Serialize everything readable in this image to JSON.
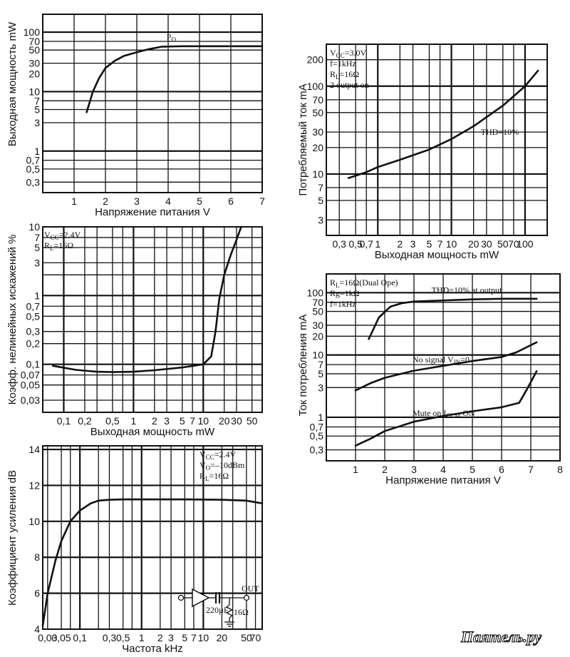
{
  "watermark": "Паяmель.ру",
  "chart_data": [
    {
      "id": "c1",
      "type": "line",
      "xlabel": "Напряжение питания V",
      "ylabel": "Выходная мощность mW",
      "xscale": "linear",
      "yscale": "log",
      "xlim": [
        0,
        7
      ],
      "ylim": [
        0.2,
        200
      ],
      "xgrid": [
        1,
        2,
        3,
        4,
        5,
        6,
        7
      ],
      "ygrid": [
        0.3,
        0.5,
        0.7,
        1,
        3,
        5,
        7,
        10,
        30,
        50,
        70,
        100
      ],
      "ygrid_bold": [
        1,
        10,
        100
      ],
      "xticks": [
        {
          "v": 1,
          "t": "1"
        },
        {
          "v": 2,
          "t": "2"
        },
        {
          "v": 3,
          "t": "3"
        },
        {
          "v": 4,
          "t": "4"
        },
        {
          "v": 5,
          "t": "5"
        },
        {
          "v": 6,
          "t": "6"
        },
        {
          "v": 7,
          "t": "7"
        }
      ],
      "yticks": [
        {
          "v": 0.3,
          "t": "0,3"
        },
        {
          "v": 0.5,
          "t": "0,5"
        },
        {
          "v": 0.7,
          "t": "0,7"
        },
        {
          "v": 1,
          "t": "1"
        },
        {
          "v": 3,
          "t": "3"
        },
        {
          "v": 5,
          "t": "5"
        },
        {
          "v": 7,
          "t": "7"
        },
        {
          "v": 10,
          "t": "10"
        },
        {
          "v": 20,
          "t": "20"
        },
        {
          "v": 30,
          "t": "30"
        },
        {
          "v": 50,
          "t": "50"
        },
        {
          "v": 70,
          "t": "70"
        },
        {
          "v": 100,
          "t": "100"
        }
      ],
      "series": [
        {
          "name": "PO",
          "x": [
            1.4,
            1.6,
            1.8,
            2,
            2.3,
            2.6,
            3,
            3.4,
            3.8,
            4.5,
            5.5,
            7
          ],
          "y": [
            4.5,
            10,
            17,
            25,
            33,
            40,
            46,
            52,
            57,
            58,
            58,
            58
          ],
          "label_at": [
            3.95,
            75
          ]
        }
      ],
      "notes": []
    },
    {
      "id": "c2",
      "type": "line",
      "xlabel": "Выходная мощность mW",
      "ylabel": "Потребляемый ток mA",
      "xscale": "log",
      "yscale": "log",
      "xlim": [
        0.2,
        200
      ],
      "ylim": [
        2,
        300
      ],
      "xgrid": [
        0.3,
        0.5,
        0.7,
        1,
        2,
        3,
        5,
        7,
        10,
        20,
        30,
        50,
        70,
        100
      ],
      "xgrid_bold": [
        1,
        10,
        100
      ],
      "ygrid": [
        3,
        5,
        7,
        10,
        20,
        30,
        50,
        70,
        100,
        200
      ],
      "ygrid_bold": [
        10,
        100
      ],
      "xticks": [
        {
          "v": 0.3,
          "t": "0,3"
        },
        {
          "v": 0.5,
          "t": "0,5"
        },
        {
          "v": 0.7,
          "t": "0,7"
        },
        {
          "v": 1,
          "t": "1"
        },
        {
          "v": 2,
          "t": "2"
        },
        {
          "v": 3,
          "t": "3"
        },
        {
          "v": 5,
          "t": "5"
        },
        {
          "v": 7,
          "t": "7"
        },
        {
          "v": 10,
          "t": "10"
        },
        {
          "v": 20,
          "t": "20"
        },
        {
          "v": 30,
          "t": "30"
        },
        {
          "v": 50,
          "t": "50"
        },
        {
          "v": 70,
          "t": "70"
        },
        {
          "v": 100,
          "t": "100"
        }
      ],
      "yticks": [
        {
          "v": 3,
          "t": "3"
        },
        {
          "v": 5,
          "t": "5"
        },
        {
          "v": 7,
          "t": "7"
        },
        {
          "v": 10,
          "t": "10"
        },
        {
          "v": 20,
          "t": "20"
        },
        {
          "v": 30,
          "t": "30"
        },
        {
          "v": 50,
          "t": "50"
        },
        {
          "v": 70,
          "t": "70"
        },
        {
          "v": 100,
          "t": "100"
        },
        {
          "v": 200,
          "t": "200"
        }
      ],
      "series": [
        {
          "name": "THD=10%",
          "x": [
            0.4,
            0.7,
            1,
            2,
            5,
            10,
            20,
            50,
            100,
            150
          ],
          "y": [
            9,
            10.5,
            12,
            14.5,
            19,
            25,
            35,
            60,
            100,
            150
          ],
          "label_at": [
            25,
            28
          ]
        }
      ],
      "notes": [
        "VCC=3.0V",
        "f=1kHz",
        "RL=16Ω",
        "2 output on"
      ]
    },
    {
      "id": "c3",
      "type": "line",
      "xlabel": "Выходная мощность mW",
      "ylabel": "Коэфф. нелинейных искажений %",
      "xscale": "log",
      "yscale": "log",
      "xlim": [
        0.05,
        70
      ],
      "ylim": [
        0.02,
        10
      ],
      "xgrid": [
        0.1,
        0.2,
        0.3,
        0.5,
        0.7,
        1,
        2,
        3,
        5,
        7,
        10,
        20,
        30,
        50
      ],
      "xgrid_bold": [
        0.1,
        1,
        10
      ],
      "ygrid": [
        0.03,
        0.05,
        0.07,
        0.1,
        0.2,
        0.3,
        0.5,
        0.7,
        1,
        2,
        3,
        5,
        7,
        10
      ],
      "ygrid_bold": [
        0.1,
        1
      ],
      "xticks": [
        {
          "v": 0.1,
          "t": "0,1"
        },
        {
          "v": 0.2,
          "t": "0,2"
        },
        {
          "v": 0.5,
          "t": "0,5"
        },
        {
          "v": 1,
          "t": "1"
        },
        {
          "v": 2,
          "t": "2"
        },
        {
          "v": 3,
          "t": "3"
        },
        {
          "v": 5,
          "t": "5"
        },
        {
          "v": 7,
          "t": "7"
        },
        {
          "v": 10,
          "t": "10"
        },
        {
          "v": 20,
          "t": "20"
        },
        {
          "v": 30,
          "t": "30"
        },
        {
          "v": 50,
          "t": "50"
        }
      ],
      "yticks": [
        {
          "v": 0.03,
          "t": "0,03"
        },
        {
          "v": 0.05,
          "t": "0,05"
        },
        {
          "v": 0.07,
          "t": "0,07"
        },
        {
          "v": 0.1,
          "t": "0,1"
        },
        {
          "v": 0.2,
          "t": "0,2"
        },
        {
          "v": 0.3,
          "t": "0,3"
        },
        {
          "v": 0.5,
          "t": "0,5"
        },
        {
          "v": 0.7,
          "t": "0,7"
        },
        {
          "v": 1,
          "t": "1"
        },
        {
          "v": 3,
          "t": "3"
        },
        {
          "v": 5,
          "t": "5"
        },
        {
          "v": 7,
          "t": "7"
        },
        {
          "v": 10,
          "t": "10"
        }
      ],
      "series": [
        {
          "name": "",
          "x": [
            0.07,
            0.15,
            0.3,
            0.5,
            1,
            2,
            5,
            10,
            13,
            15,
            17,
            20,
            25,
            30,
            35
          ],
          "y": [
            0.095,
            0.083,
            0.078,
            0.077,
            0.078,
            0.082,
            0.09,
            0.1,
            0.13,
            0.3,
            0.9,
            2,
            4,
            6.5,
            10
          ]
        }
      ],
      "notes": [
        "VCC=2.4V",
        "RL=16Ω"
      ]
    },
    {
      "id": "c4",
      "type": "line",
      "xlabel": "Напряжение питания V",
      "ylabel": "Ток потребления mA",
      "xscale": "linear",
      "yscale": "log",
      "xlim": [
        0,
        8
      ],
      "ylim": [
        0.2,
        200
      ],
      "xgrid": [
        1,
        2,
        3,
        4,
        5,
        6,
        7,
        8
      ],
      "ygrid": [
        0.3,
        0.5,
        0.7,
        1,
        3,
        5,
        7,
        10,
        20,
        30,
        50,
        70,
        100
      ],
      "ygrid_bold": [
        1,
        10,
        100
      ],
      "xticks": [
        {
          "v": 1,
          "t": "1"
        },
        {
          "v": 2,
          "t": "2"
        },
        {
          "v": 3,
          "t": "3"
        },
        {
          "v": 4,
          "t": "4"
        },
        {
          "v": 5,
          "t": "5"
        },
        {
          "v": 6,
          "t": "6"
        },
        {
          "v": 7,
          "t": "7"
        },
        {
          "v": 8,
          "t": "8"
        }
      ],
      "yticks": [
        {
          "v": 0.3,
          "t": "0,3"
        },
        {
          "v": 0.5,
          "t": "0,5"
        },
        {
          "v": 0.7,
          "t": "0,7"
        },
        {
          "v": 1,
          "t": "1"
        },
        {
          "v": 3,
          "t": "3"
        },
        {
          "v": 5,
          "t": "5"
        },
        {
          "v": 7,
          "t": "7"
        },
        {
          "v": 10,
          "t": "10"
        },
        {
          "v": 20,
          "t": "20"
        },
        {
          "v": 30,
          "t": "30"
        },
        {
          "v": 50,
          "t": "50"
        },
        {
          "v": 70,
          "t": "70"
        },
        {
          "v": 100,
          "t": "100"
        }
      ],
      "series": [
        {
          "name": "THD=10% at output",
          "x": [
            1.45,
            1.8,
            2.2,
            2.6,
            3,
            4,
            5,
            6,
            7.2
          ],
          "y": [
            18,
            40,
            60,
            68,
            72,
            75,
            78,
            80,
            80
          ],
          "label_at": [
            3.6,
            100
          ]
        },
        {
          "name": "No signal VIN=0",
          "x": [
            1,
            1.5,
            2,
            3,
            4,
            5,
            6,
            6.5,
            7.2
          ],
          "y": [
            2.7,
            3.5,
            4.3,
            5.6,
            6.7,
            8,
            9.3,
            11,
            16
          ],
          "label_at": [
            2.95,
            7.6
          ]
        },
        {
          "name": "Mute on ICCM ON",
          "x": [
            1,
            1.5,
            2,
            3,
            4,
            5,
            6,
            6.6,
            6.9,
            7.2
          ],
          "y": [
            0.35,
            0.45,
            0.6,
            0.85,
            1.05,
            1.25,
            1.45,
            1.7,
            3,
            5.5
          ],
          "label_at": [
            2.95,
            1.05
          ]
        }
      ],
      "notes": [
        "RL=16Ω(Dual Ope)",
        "Rg=1kΩ",
        "f=1kHz"
      ]
    },
    {
      "id": "c5",
      "type": "line",
      "xlabel": "Частота kHz",
      "ylabel": "Коэффициент усиления dB",
      "xscale": "log",
      "yscale": "linear",
      "xlim": [
        0.025,
        90
      ],
      "ylim": [
        4,
        14.2
      ],
      "xgrid": [
        0.03,
        0.05,
        0.07,
        0.1,
        0.2,
        0.3,
        0.5,
        0.7,
        1,
        2,
        3,
        5,
        7,
        10,
        20,
        30,
        50,
        70
      ],
      "xgrid_bold": [
        0.1,
        1,
        10
      ],
      "ygrid": [
        6,
        8,
        10,
        12,
        14
      ],
      "ygrid_bold": [
        6,
        8,
        10,
        12,
        14
      ],
      "xticks": [
        {
          "v": 0.03,
          "t": "0,03"
        },
        {
          "v": 0.05,
          "t": "0,05"
        },
        {
          "v": 0.1,
          "t": "0,1"
        },
        {
          "v": 0.3,
          "t": "0,3"
        },
        {
          "v": 0.5,
          "t": "0,5"
        },
        {
          "v": 1,
          "t": "1"
        },
        {
          "v": 2,
          "t": "2"
        },
        {
          "v": 3,
          "t": "3"
        },
        {
          "v": 5,
          "t": "5"
        },
        {
          "v": 7,
          "t": "7"
        },
        {
          "v": 10,
          "t": "10"
        },
        {
          "v": 20,
          "t": "20"
        },
        {
          "v": 50,
          "t": "50"
        },
        {
          "v": 70,
          "t": "70"
        }
      ],
      "yticks": [
        {
          "v": 4,
          "t": "4"
        },
        {
          "v": 6,
          "t": "6"
        },
        {
          "v": 8,
          "t": "8"
        },
        {
          "v": 10,
          "t": "10"
        },
        {
          "v": 12,
          "t": "12"
        },
        {
          "v": 14,
          "t": "14"
        }
      ],
      "series": [
        {
          "name": "",
          "x": [
            0.025,
            0.03,
            0.04,
            0.05,
            0.07,
            0.1,
            0.15,
            0.2,
            0.3,
            0.5,
            1,
            5,
            20,
            50,
            90
          ],
          "y": [
            4.2,
            6,
            7.8,
            8.9,
            10,
            10.6,
            11,
            11.15,
            11.2,
            11.22,
            11.22,
            11.22,
            11.2,
            11.15,
            11
          ]
        }
      ],
      "notes": [
        "VCC=2.4V",
        "VO=–10dBm",
        "RL=16Ω"
      ],
      "circuit": {
        "capacitor": "220µF",
        "resistor": "16Ω",
        "output": "OUT"
      }
    }
  ]
}
